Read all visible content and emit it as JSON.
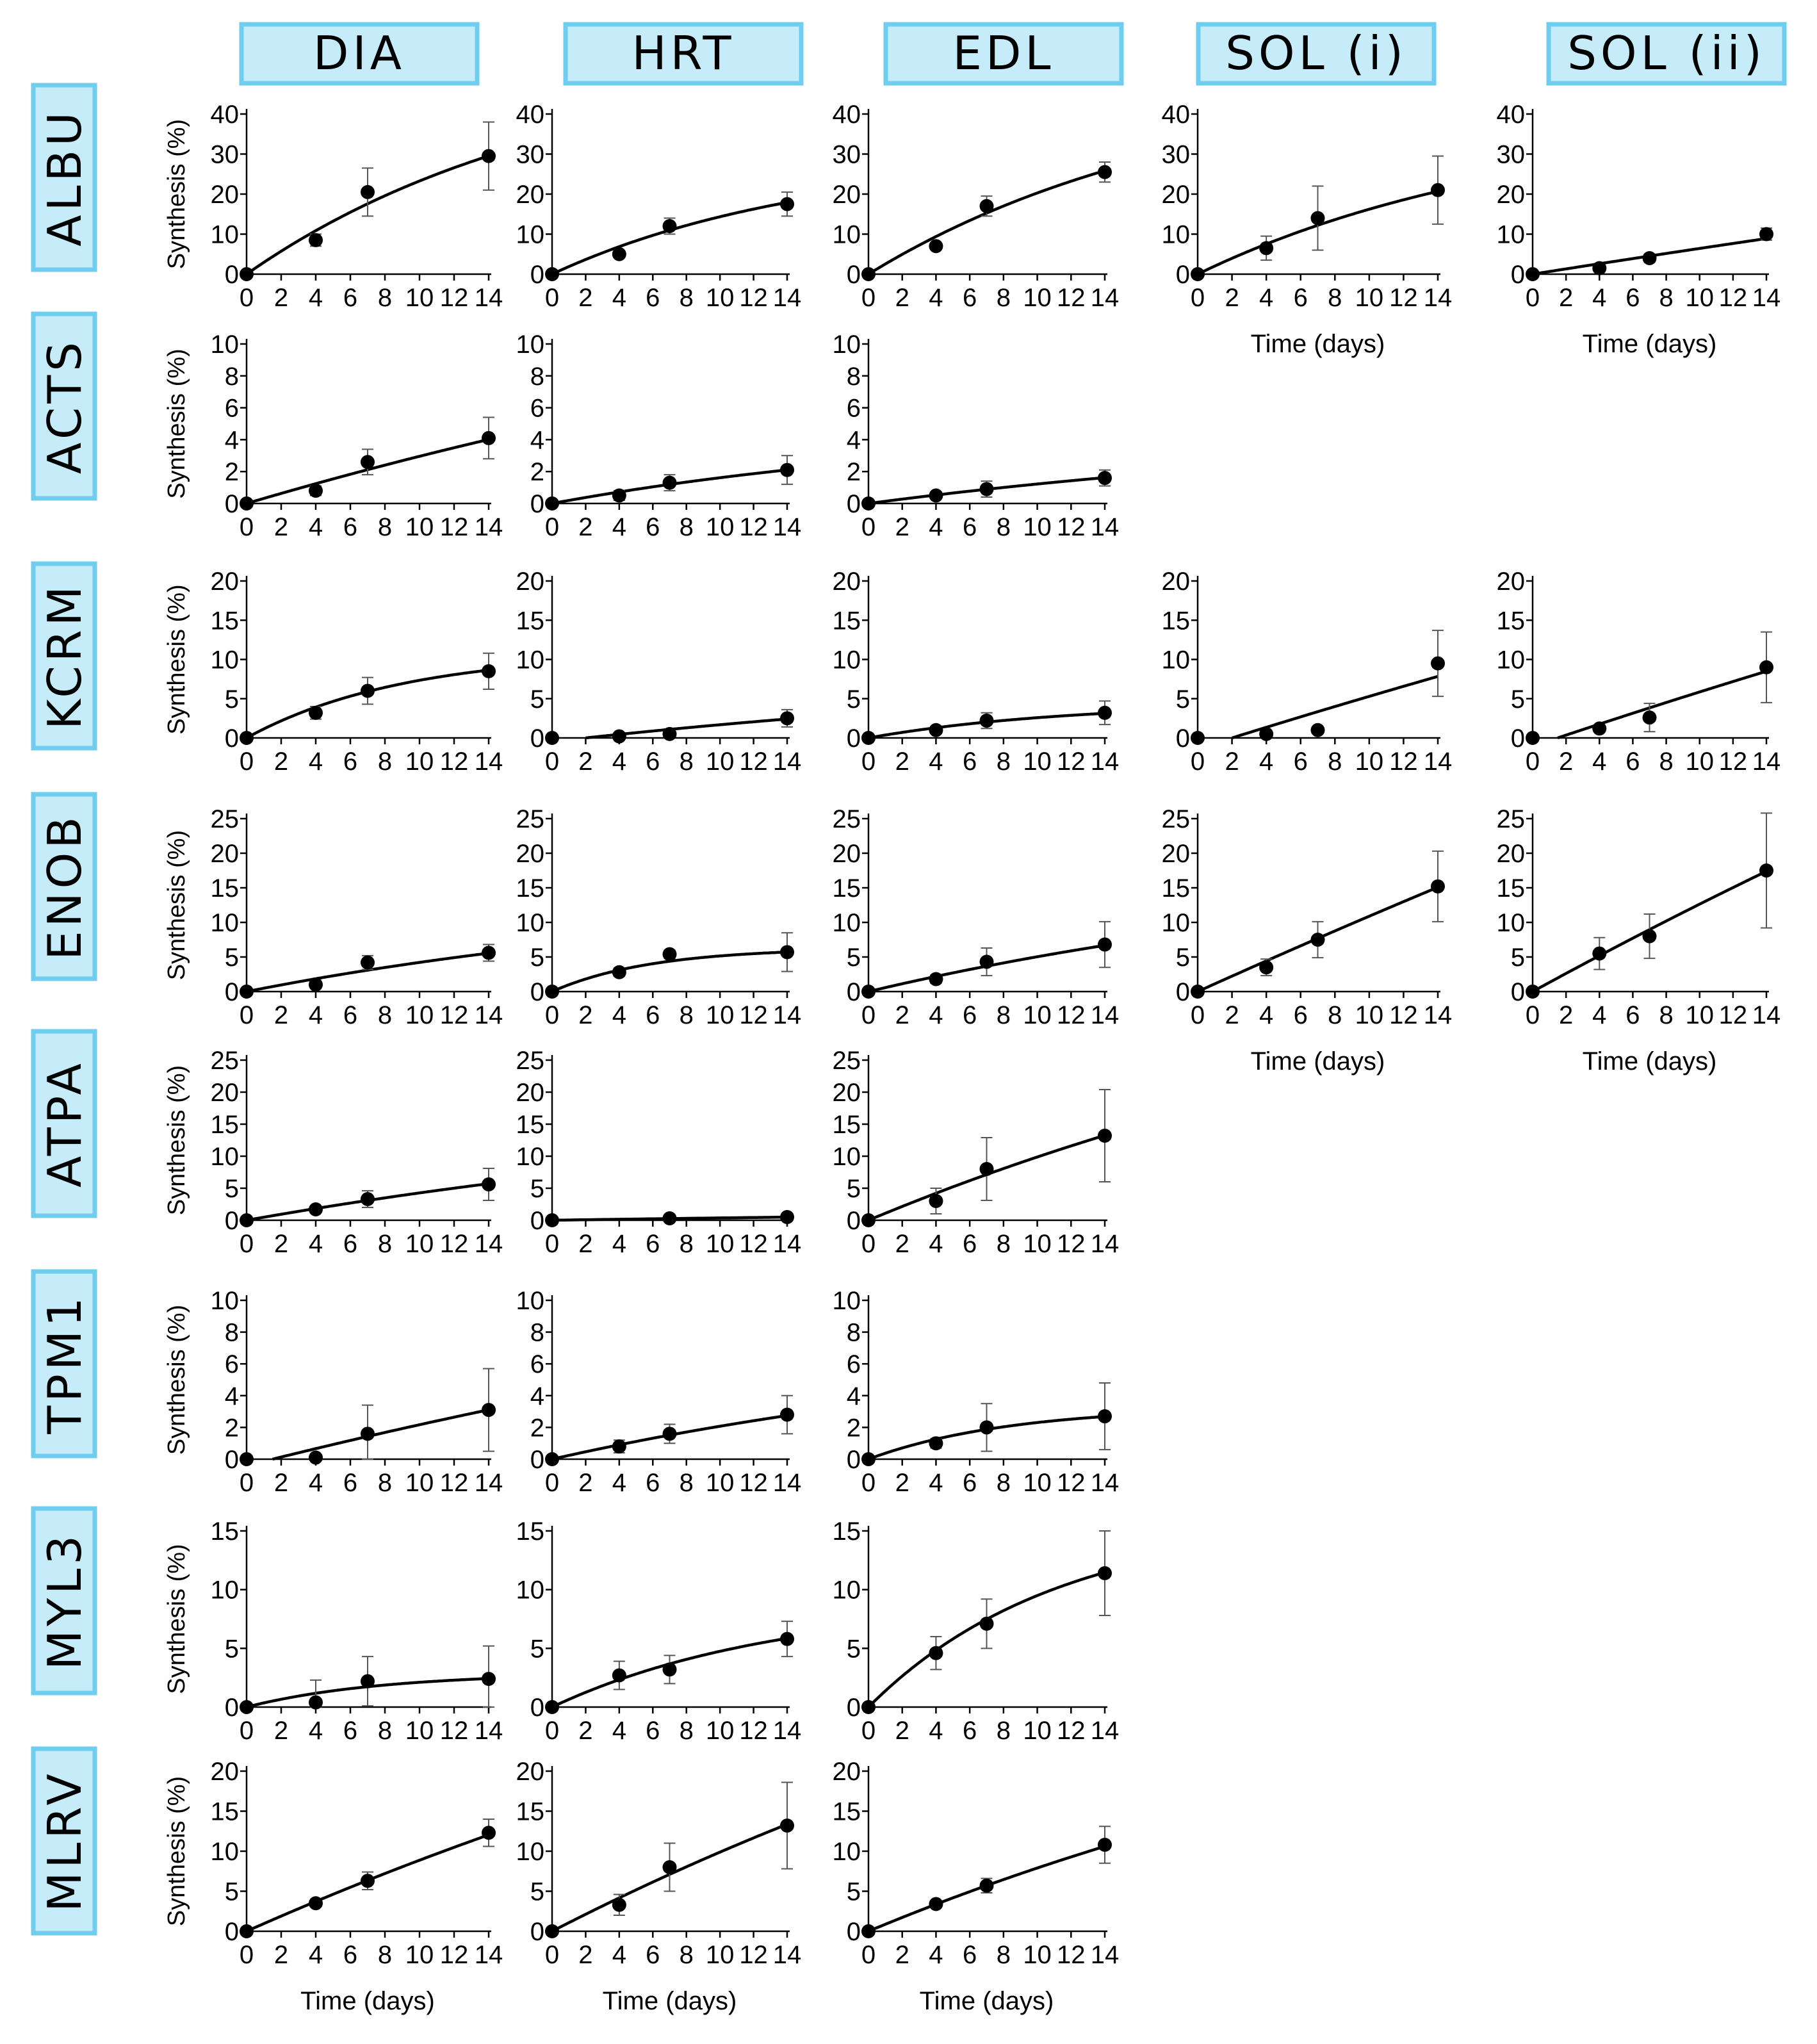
{
  "columns": [
    "DIA",
    "HRT",
    "EDL",
    "SOL (i)",
    "SOL (ii)"
  ],
  "rows": [
    "ALBU",
    "ACTS",
    "KCRM",
    "ENOB",
    "ATPA",
    "TPM1",
    "MYL3",
    "MLRV"
  ],
  "ylabel": "Synthesis (%)",
  "xlabel_prefix": "Time",
  "xlabel_unit": "(days)",
  "header_fill": "#c5ecf8",
  "header_stroke": "#6fcdef",
  "x_ticks": [
    0,
    2,
    4,
    6,
    8,
    10,
    12,
    14
  ],
  "chart_data": [
    {
      "type": "scatter",
      "row": "ALBU",
      "column": "DIA",
      "xlim": [
        0,
        14
      ],
      "ylim": [
        0,
        40
      ],
      "yticks": [
        0,
        10,
        20,
        30,
        40
      ],
      "x": [
        0,
        4,
        7,
        14
      ],
      "y": [
        0,
        8.5,
        20.5,
        29.5
      ],
      "err": [
        0,
        1.5,
        6,
        8.5
      ],
      "fit": {
        "plateau": 55,
        "k": 0.055,
        "lag": 0
      },
      "xlabel": false
    },
    {
      "type": "scatter",
      "row": "ALBU",
      "column": "HRT",
      "xlim": [
        0,
        14
      ],
      "ylim": [
        0,
        40
      ],
      "yticks": [
        0,
        10,
        20,
        30,
        40
      ],
      "x": [
        0,
        4,
        7,
        14
      ],
      "y": [
        0,
        5,
        12,
        17.5
      ],
      "err": [
        0,
        0.8,
        2,
        3
      ],
      "fit": {
        "plateau": 30,
        "k": 0.065,
        "lag": 0
      },
      "xlabel": false
    },
    {
      "type": "scatter",
      "row": "ALBU",
      "column": "EDL",
      "xlim": [
        0,
        14
      ],
      "ylim": [
        0,
        40
      ],
      "yticks": [
        0,
        10,
        20,
        30,
        40
      ],
      "x": [
        0,
        4,
        7,
        14
      ],
      "y": [
        0,
        7,
        17,
        25.5
      ],
      "err": [
        0,
        0.8,
        2.5,
        2.5
      ],
      "fit": {
        "plateau": 50,
        "k": 0.052,
        "lag": 0
      },
      "xlabel": false
    },
    {
      "type": "scatter",
      "row": "ALBU",
      "column": "SOL (i)",
      "xlim": [
        0,
        14
      ],
      "ylim": [
        0,
        40
      ],
      "yticks": [
        0,
        10,
        20,
        30,
        40
      ],
      "x": [
        0,
        4,
        7,
        14
      ],
      "y": [
        0,
        6.5,
        14,
        21
      ],
      "err": [
        0,
        3,
        8,
        8.5
      ],
      "fit": {
        "plateau": 40,
        "k": 0.052,
        "lag": 0
      },
      "xlabel": true
    },
    {
      "type": "scatter",
      "row": "ALBU",
      "column": "SOL (ii)",
      "xlim": [
        0,
        14
      ],
      "ylim": [
        0,
        40
      ],
      "yticks": [
        0,
        10,
        20,
        30,
        40
      ],
      "x": [
        0,
        4,
        7,
        14
      ],
      "y": [
        0,
        1.5,
        4,
        10
      ],
      "err": [
        0,
        0.5,
        1,
        1.5
      ],
      "fit": {
        "plateau": 120,
        "k": 0.0055,
        "lag": 0
      },
      "xlabel": true
    },
    {
      "type": "scatter",
      "row": "ACTS",
      "column": "DIA",
      "xlim": [
        0,
        14
      ],
      "ylim": [
        0,
        10
      ],
      "yticks": [
        0,
        2,
        4,
        6,
        8,
        10
      ],
      "x": [
        0,
        4,
        7,
        14
      ],
      "y": [
        0,
        0.8,
        2.6,
        4.1
      ],
      "err": [
        0,
        0.3,
        0.8,
        1.3
      ],
      "fit": {
        "plateau": 20,
        "k": 0.016,
        "lag": 0
      },
      "xlabel": false
    },
    {
      "type": "scatter",
      "row": "ACTS",
      "column": "HRT",
      "xlim": [
        0,
        14
      ],
      "ylim": [
        0,
        10
      ],
      "yticks": [
        0,
        2,
        4,
        6,
        8,
        10
      ],
      "x": [
        0,
        4,
        7,
        14
      ],
      "y": [
        0,
        0.5,
        1.3,
        2.1
      ],
      "err": [
        0,
        0.3,
        0.5,
        0.9
      ],
      "fit": {
        "plateau": 5,
        "k": 0.039,
        "lag": 0
      },
      "xlabel": false
    },
    {
      "type": "scatter",
      "row": "ACTS",
      "column": "EDL",
      "xlim": [
        0,
        14
      ],
      "ylim": [
        0,
        10
      ],
      "yticks": [
        0,
        2,
        4,
        6,
        8,
        10
      ],
      "x": [
        0,
        4,
        7,
        14
      ],
      "y": [
        0,
        0.5,
        0.9,
        1.6
      ],
      "err": [
        0,
        0.2,
        0.5,
        0.5
      ],
      "fit": {
        "plateau": 5,
        "k": 0.028,
        "lag": 0
      },
      "xlabel": false
    },
    {
      "type": "scatter",
      "row": "KCRM",
      "column": "DIA",
      "xlim": [
        0,
        14
      ],
      "ylim": [
        0,
        20
      ],
      "yticks": [
        0,
        5,
        10,
        15,
        20
      ],
      "x": [
        0,
        4,
        7,
        14
      ],
      "y": [
        0,
        3.2,
        6,
        8.5
      ],
      "err": [
        0,
        0.8,
        1.7,
        2.3
      ],
      "fit": {
        "plateau": 11,
        "k": 0.11,
        "lag": 0
      },
      "xlabel": false
    },
    {
      "type": "scatter",
      "row": "KCRM",
      "column": "HRT",
      "xlim": [
        0,
        14
      ],
      "ylim": [
        0,
        20
      ],
      "yticks": [
        0,
        5,
        10,
        15,
        20
      ],
      "x": [
        0,
        4,
        7,
        14
      ],
      "y": [
        0,
        0.2,
        0.5,
        2.5
      ],
      "err": [
        0,
        0.3,
        0.3,
        1.1
      ],
      "fit": {
        "plateau": 10,
        "k": 0.023,
        "lag": 2
      },
      "xlabel": false
    },
    {
      "type": "scatter",
      "row": "KCRM",
      "column": "EDL",
      "xlim": [
        0,
        14
      ],
      "ylim": [
        0,
        20
      ],
      "yticks": [
        0,
        5,
        10,
        15,
        20
      ],
      "x": [
        0,
        4,
        7,
        14
      ],
      "y": [
        0,
        1,
        2.2,
        3.2
      ],
      "err": [
        0,
        0.4,
        1,
        1.5
      ],
      "fit": {
        "plateau": 4.5,
        "k": 0.085,
        "lag": 0
      },
      "xlabel": false
    },
    {
      "type": "scatter",
      "row": "KCRM",
      "column": "SOL (i)",
      "xlim": [
        0,
        14
      ],
      "ylim": [
        0,
        20
      ],
      "yticks": [
        0,
        5,
        10,
        15,
        20
      ],
      "x": [
        0,
        4,
        7,
        14
      ],
      "y": [
        0,
        0.5,
        1,
        9.5
      ],
      "err": [
        0,
        0.3,
        0.3,
        4.2
      ],
      "fit": {
        "plateau": 100,
        "k": 0.0068,
        "lag": 2
      },
      "xlabel": false
    },
    {
      "type": "scatter",
      "row": "KCRM",
      "column": "SOL (ii)",
      "xlim": [
        0,
        14
      ],
      "ylim": [
        0,
        20
      ],
      "yticks": [
        0,
        5,
        10,
        15,
        20
      ],
      "x": [
        0,
        4,
        7,
        14
      ],
      "y": [
        0,
        1.2,
        2.6,
        9
      ],
      "err": [
        0,
        0.3,
        1.8,
        4.5
      ],
      "fit": {
        "plateau": 100,
        "k": 0.0071,
        "lag": 1.5
      },
      "xlabel": false
    },
    {
      "type": "scatter",
      "row": "ENOB",
      "column": "DIA",
      "xlim": [
        0,
        14
      ],
      "ylim": [
        0,
        25
      ],
      "yticks": [
        0,
        5,
        10,
        15,
        20,
        25
      ],
      "x": [
        0,
        4,
        7,
        14
      ],
      "y": [
        0,
        1,
        4.2,
        5.6
      ],
      "err": [
        0,
        0.5,
        1,
        1.2
      ],
      "fit": {
        "plateau": 15,
        "k": 0.033,
        "lag": 0
      },
      "xlabel": false
    },
    {
      "type": "scatter",
      "row": "ENOB",
      "column": "HRT",
      "xlim": [
        0,
        14
      ],
      "ylim": [
        0,
        25
      ],
      "yticks": [
        0,
        5,
        10,
        15,
        20,
        25
      ],
      "x": [
        0,
        4,
        7,
        14
      ],
      "y": [
        0,
        2.8,
        5.4,
        5.7
      ],
      "err": [
        0,
        0.6,
        0.6,
        2.8
      ],
      "fit": {
        "plateau": 6.3,
        "k": 0.17,
        "lag": 0
      },
      "xlabel": false
    },
    {
      "type": "scatter",
      "row": "ENOB",
      "column": "EDL",
      "xlim": [
        0,
        14
      ],
      "ylim": [
        0,
        25
      ],
      "yticks": [
        0,
        5,
        10,
        15,
        20,
        25
      ],
      "x": [
        0,
        4,
        7,
        14
      ],
      "y": [
        0,
        1.8,
        4.3,
        6.8
      ],
      "err": [
        0,
        0.6,
        2,
        3.3
      ],
      "fit": {
        "plateau": 20,
        "k": 0.029,
        "lag": 0
      },
      "xlabel": false
    },
    {
      "type": "scatter",
      "row": "ENOB",
      "column": "SOL (i)",
      "xlim": [
        0,
        14
      ],
      "ylim": [
        0,
        25
      ],
      "yticks": [
        0,
        5,
        10,
        15,
        20,
        25
      ],
      "x": [
        0,
        4,
        7,
        14
      ],
      "y": [
        0,
        3.5,
        7.5,
        15.2
      ],
      "err": [
        0,
        1.2,
        2.6,
        5.1
      ],
      "fit": {
        "plateau": 200,
        "k": 0.0056,
        "lag": 0
      },
      "xlabel": true
    },
    {
      "type": "scatter",
      "row": "ENOB",
      "column": "SOL (ii)",
      "xlim": [
        0,
        14
      ],
      "ylim": [
        0,
        25
      ],
      "yticks": [
        0,
        5,
        10,
        15,
        20,
        25
      ],
      "x": [
        0,
        4,
        7,
        14
      ],
      "y": [
        0,
        5.5,
        8,
        17.5
      ],
      "err": [
        0,
        2.3,
        3.2,
        8.3
      ],
      "fit": {
        "plateau": 150,
        "k": 0.0088,
        "lag": 0
      },
      "xlabel": true
    },
    {
      "type": "scatter",
      "row": "ATPA",
      "column": "DIA",
      "xlim": [
        0,
        14
      ],
      "ylim": [
        0,
        25
      ],
      "yticks": [
        0,
        5,
        10,
        15,
        20,
        25
      ],
      "x": [
        0,
        4,
        7,
        14
      ],
      "y": [
        0,
        1.7,
        3.3,
        5.6
      ],
      "err": [
        0,
        0.4,
        1.3,
        2.5
      ],
      "fit": {
        "plateau": 20,
        "k": 0.024,
        "lag": 0
      },
      "xlabel": false
    },
    {
      "type": "scatter",
      "row": "ATPA",
      "column": "HRT",
      "xlim": [
        0,
        14
      ],
      "ylim": [
        0,
        25
      ],
      "yticks": [
        0,
        5,
        10,
        15,
        20,
        25
      ],
      "x": [
        0,
        7,
        14
      ],
      "y": [
        0,
        0.3,
        0.5
      ],
      "err": [
        0,
        0.1,
        0.1
      ],
      "fit": {
        "plateau": 2,
        "k": 0.02,
        "lag": 0
      },
      "xlabel": false
    },
    {
      "type": "scatter",
      "row": "ATPA",
      "column": "EDL",
      "xlim": [
        0,
        14
      ],
      "ylim": [
        0,
        25
      ],
      "yticks": [
        0,
        5,
        10,
        15,
        20,
        25
      ],
      "x": [
        0,
        4,
        7,
        14
      ],
      "y": [
        0,
        3,
        8,
        13.2
      ],
      "err": [
        0,
        2,
        4.9,
        7.2
      ],
      "fit": {
        "plateau": 50,
        "k": 0.022,
        "lag": 0
      },
      "xlabel": false
    },
    {
      "type": "scatter",
      "row": "TPM1",
      "column": "DIA",
      "xlim": [
        0,
        14
      ],
      "ylim": [
        0,
        10
      ],
      "yticks": [
        0,
        2,
        4,
        6,
        8,
        10
      ],
      "x": [
        0,
        4,
        7,
        14
      ],
      "y": [
        0,
        0.1,
        1.6,
        3.1
      ],
      "err": [
        0,
        0.1,
        1.8,
        2.6
      ],
      "fit": {
        "plateau": 20,
        "k": 0.0135,
        "lag": 1.5
      },
      "xlabel": false
    },
    {
      "type": "scatter",
      "row": "TPM1",
      "column": "HRT",
      "xlim": [
        0,
        14
      ],
      "ylim": [
        0,
        10
      ],
      "yticks": [
        0,
        2,
        4,
        6,
        8,
        10
      ],
      "x": [
        0,
        4,
        7,
        14
      ],
      "y": [
        0,
        0.8,
        1.6,
        2.8
      ],
      "err": [
        0,
        0.4,
        0.6,
        1.2
      ],
      "fit": {
        "plateau": 8,
        "k": 0.03,
        "lag": 0
      },
      "xlabel": false
    },
    {
      "type": "scatter",
      "row": "TPM1",
      "column": "EDL",
      "xlim": [
        0,
        14
      ],
      "ylim": [
        0,
        10
      ],
      "yticks": [
        0,
        2,
        4,
        6,
        8,
        10
      ],
      "x": [
        0,
        4,
        7,
        14
      ],
      "y": [
        0,
        1,
        2,
        2.7
      ],
      "err": [
        0,
        0.3,
        1.5,
        2.1
      ],
      "fit": {
        "plateau": 3.3,
        "k": 0.12,
        "lag": 0
      },
      "xlabel": false
    },
    {
      "type": "scatter",
      "row": "MYL3",
      "column": "DIA",
      "xlim": [
        0,
        14
      ],
      "ylim": [
        0,
        15
      ],
      "yticks": [
        0,
        5,
        10,
        15
      ],
      "x": [
        0,
        4,
        7,
        14
      ],
      "y": [
        0,
        0.4,
        2.2,
        2.4
      ],
      "err": [
        0,
        1.9,
        2.1,
        2.8
      ],
      "fit": {
        "plateau": 2.9,
        "k": 0.13,
        "lag": 0
      },
      "xlabel": false
    },
    {
      "type": "scatter",
      "row": "MYL3",
      "column": "HRT",
      "xlim": [
        0,
        14
      ],
      "ylim": [
        0,
        15
      ],
      "yticks": [
        0,
        5,
        10,
        15
      ],
      "x": [
        0,
        4,
        7,
        14
      ],
      "y": [
        0,
        2.7,
        3.2,
        5.8
      ],
      "err": [
        0,
        1.2,
        1.2,
        1.5
      ],
      "fit": {
        "plateau": 9,
        "k": 0.075,
        "lag": 0
      },
      "xlabel": false
    },
    {
      "type": "scatter",
      "row": "MYL3",
      "column": "EDL",
      "xlim": [
        0,
        14
      ],
      "ylim": [
        0,
        15
      ],
      "yticks": [
        0,
        5,
        10,
        15
      ],
      "x": [
        0,
        4,
        7,
        14
      ],
      "y": [
        0,
        4.6,
        7.1,
        11.4
      ],
      "err": [
        0,
        1.4,
        2.1,
        3.6
      ],
      "fit": {
        "plateau": 16,
        "k": 0.09,
        "lag": 0
      },
      "xlabel": false
    },
    {
      "type": "scatter",
      "row": "MLRV",
      "column": "DIA",
      "xlim": [
        0,
        14
      ],
      "ylim": [
        0,
        20
      ],
      "yticks": [
        0,
        5,
        10,
        15,
        20
      ],
      "x": [
        0,
        4,
        7,
        14
      ],
      "y": [
        0,
        3.5,
        6.3,
        12.3
      ],
      "err": [
        0,
        0.3,
        1.1,
        1.7
      ],
      "fit": {
        "plateau": 60,
        "k": 0.016,
        "lag": 0
      },
      "xlabel": true
    },
    {
      "type": "scatter",
      "row": "MLRV",
      "column": "HRT",
      "xlim": [
        0,
        14
      ],
      "ylim": [
        0,
        20
      ],
      "yticks": [
        0,
        5,
        10,
        15,
        20
      ],
      "x": [
        0,
        4,
        7,
        14
      ],
      "y": [
        0,
        3.3,
        8,
        13.2
      ],
      "err": [
        0,
        1.3,
        3,
        5.4
      ],
      "fit": {
        "plateau": 60,
        "k": 0.018,
        "lag": 0
      },
      "xlabel": true
    },
    {
      "type": "scatter",
      "row": "MLRV",
      "column": "EDL",
      "xlim": [
        0,
        14
      ],
      "ylim": [
        0,
        20
      ],
      "yticks": [
        0,
        5,
        10,
        15,
        20
      ],
      "x": [
        0,
        4,
        7,
        14
      ],
      "y": [
        0,
        3.4,
        5.7,
        10.8
      ],
      "err": [
        0,
        0.2,
        0.9,
        2.3
      ],
      "fit": {
        "plateau": 40,
        "k": 0.022,
        "lag": 0
      },
      "xlabel": true
    }
  ]
}
